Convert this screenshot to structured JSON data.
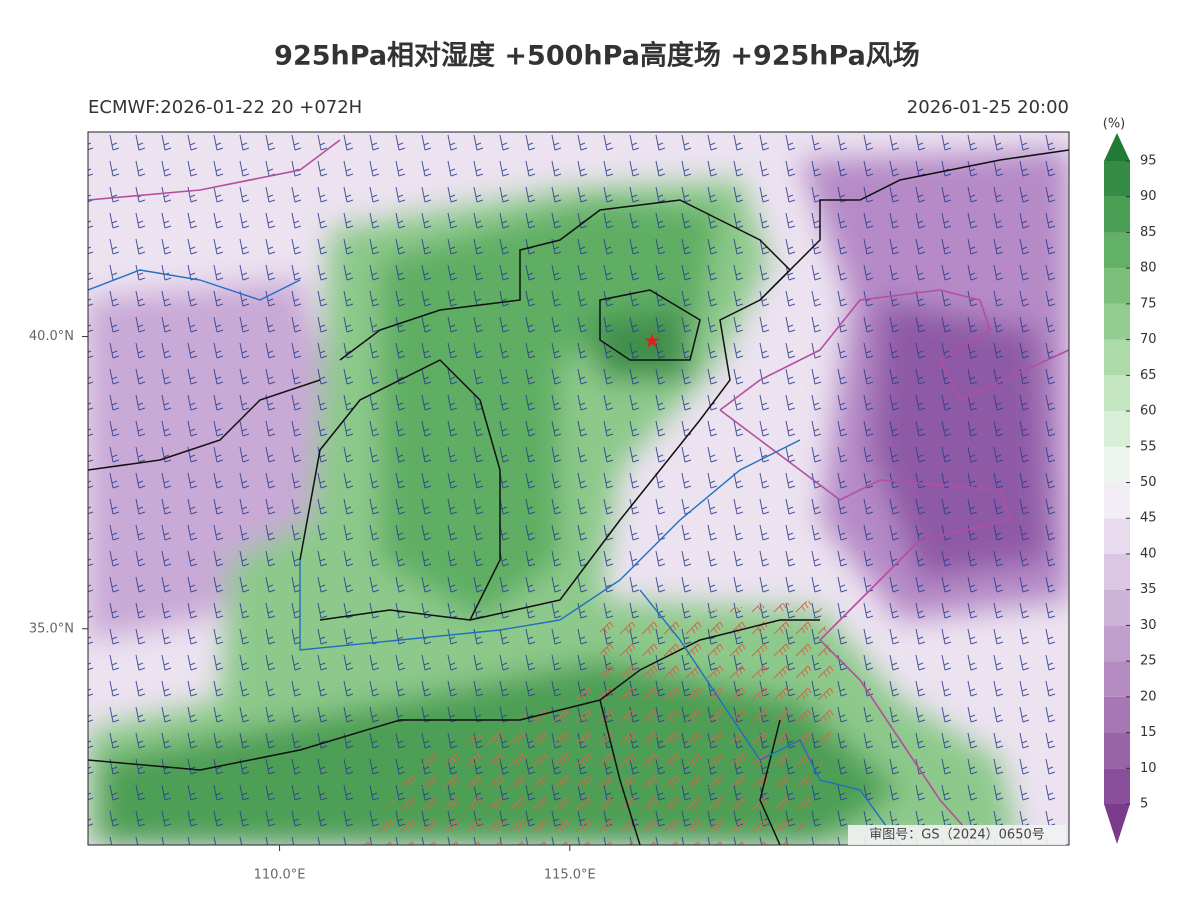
{
  "title": "925hPa相对湿度 +500hPa高度场 +925hPa风场",
  "subtitle_left": "ECMWF:2026-01-22 20 +072H",
  "subtitle_right": "2026-01-25 20:00",
  "map": {
    "lon_range": [
      106.7,
      123.6
    ],
    "lat_range": [
      31.3,
      43.5
    ],
    "lon_ticks": [
      {
        "value": 110,
        "label": "110.0°E"
      },
      {
        "value": 115,
        "label": "115.0°E"
      }
    ],
    "lat_ticks": [
      {
        "value": 35,
        "label": "35.0°N"
      },
      {
        "value": 40,
        "label": "40.0°N"
      }
    ]
  },
  "colorbar": {
    "unit": "(%)",
    "levels": [
      5,
      10,
      15,
      20,
      25,
      30,
      35,
      40,
      45,
      50,
      55,
      60,
      65,
      70,
      75,
      80,
      85,
      90,
      95
    ],
    "colors": [
      "#7b3b8c",
      "#8a4f9a",
      "#9863a7",
      "#a677b4",
      "#b48bc0",
      "#c19fcc",
      "#ceb3d8",
      "#dbc7e3",
      "#e8dbee",
      "#f3eef5",
      "#eef5ee",
      "#d9eed7",
      "#c3e5c0",
      "#acdaa8",
      "#94cd91",
      "#7cbf7b",
      "#63b067",
      "#4b9f55",
      "#358c45",
      "#217a36"
    ]
  },
  "review_number": "审图号：GS（2024）0650号"
}
